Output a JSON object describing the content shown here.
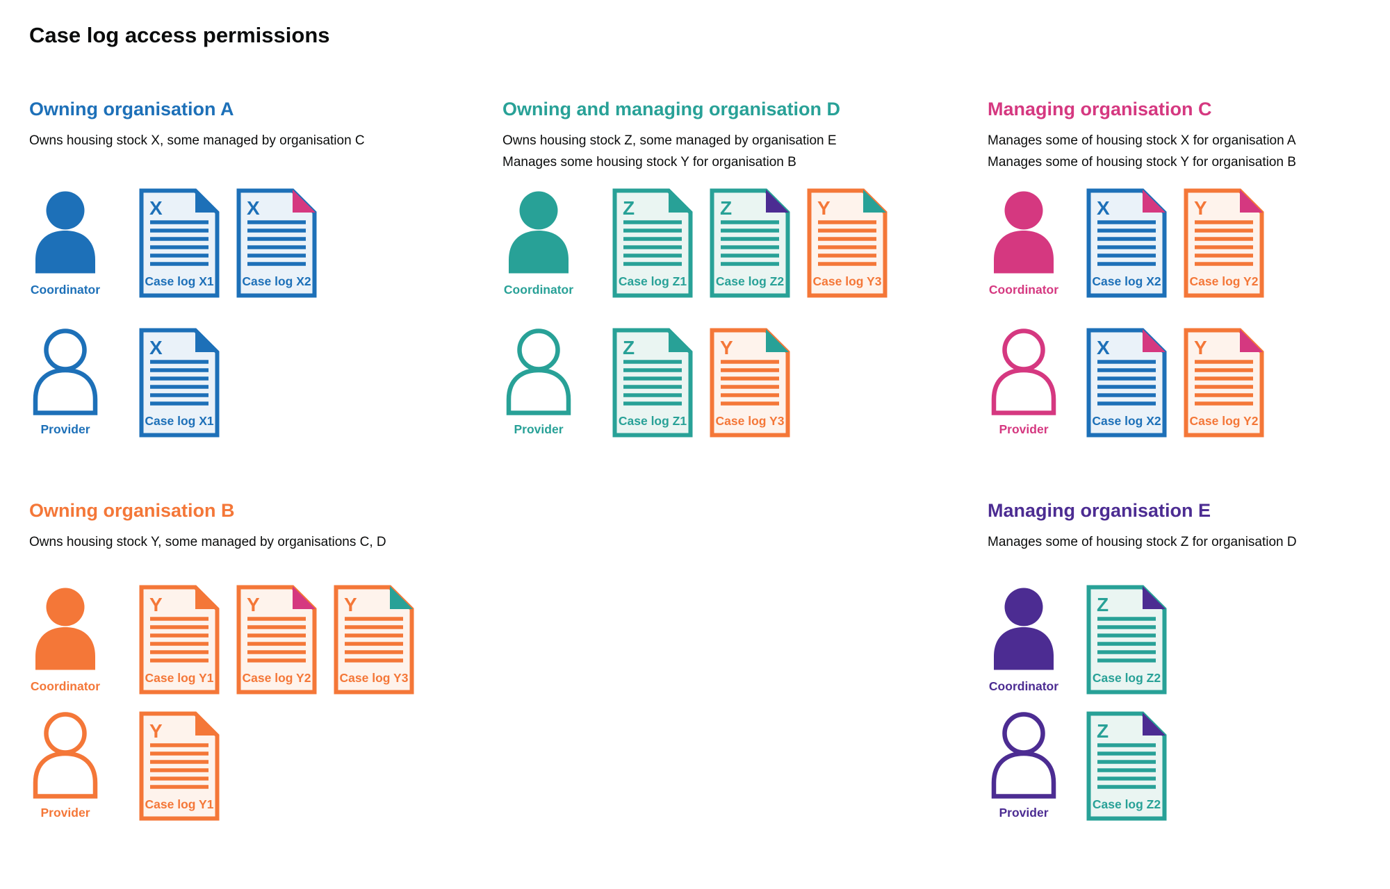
{
  "page_title": "Case log access permissions",
  "colors": {
    "blue": "#1d70b8",
    "teal": "#28a197",
    "pink": "#d53880",
    "orange": "#f47738",
    "purple": "#4c2c92",
    "text": "#0b0c0c",
    "background": "#ffffff",
    "tint_blue": "#eaf2f9",
    "tint_teal": "#eaf5f2",
    "tint_orange": "#fef3ec"
  },
  "sections": [
    {
      "slot": "a",
      "title": "Owning organisation A",
      "color": "blue",
      "description_lines": [
        "Owns housing stock X, some managed by organisation C"
      ],
      "rows": [
        {
          "role": "Coordinator",
          "person_style": "filled",
          "docs": [
            {
              "letter": "X",
              "label": "Case log X1",
              "doc_color": "blue",
              "fold_color": "blue"
            },
            {
              "letter": "X",
              "label": "Case log X2",
              "doc_color": "blue",
              "fold_color": "pink"
            }
          ]
        },
        {
          "role": "Provider",
          "person_style": "outline",
          "docs": [
            {
              "letter": "X",
              "label": "Case log X1",
              "doc_color": "blue",
              "fold_color": "blue"
            }
          ]
        }
      ]
    },
    {
      "slot": "d",
      "title": "Owning and managing organisation D",
      "color": "teal",
      "description_lines": [
        "Owns housing stock Z, some managed by organisation E",
        "Manages some housing stock Y for organisation B"
      ],
      "rows": [
        {
          "role": "Coordinator",
          "person_style": "filled",
          "docs": [
            {
              "letter": "Z",
              "label": "Case log Z1",
              "doc_color": "teal",
              "fold_color": "teal"
            },
            {
              "letter": "Z",
              "label": "Case log Z2",
              "doc_color": "teal",
              "fold_color": "purple"
            },
            {
              "letter": "Y",
              "label": "Case log Y3",
              "doc_color": "orange",
              "fold_color": "teal"
            }
          ]
        },
        {
          "role": "Provider",
          "person_style": "outline",
          "docs": [
            {
              "letter": "Z",
              "label": "Case log Z1",
              "doc_color": "teal",
              "fold_color": "teal"
            },
            {
              "letter": "Y",
              "label": "Case log Y3",
              "doc_color": "orange",
              "fold_color": "teal"
            }
          ]
        }
      ]
    },
    {
      "slot": "c",
      "title": "Managing organisation C",
      "color": "pink",
      "description_lines": [
        "Manages some of housing stock X for organisation A",
        "Manages some of housing stock Y for organisation B"
      ],
      "rows": [
        {
          "role": "Coordinator",
          "person_style": "filled",
          "docs": [
            {
              "letter": "X",
              "label": "Case log X2",
              "doc_color": "blue",
              "fold_color": "pink"
            },
            {
              "letter": "Y",
              "label": "Case log Y2",
              "doc_color": "orange",
              "fold_color": "pink"
            }
          ]
        },
        {
          "role": "Provider",
          "person_style": "outline",
          "docs": [
            {
              "letter": "X",
              "label": "Case log X2",
              "doc_color": "blue",
              "fold_color": "pink"
            },
            {
              "letter": "Y",
              "label": "Case log Y2",
              "doc_color": "orange",
              "fold_color": "pink"
            }
          ]
        }
      ]
    },
    {
      "slot": "b",
      "title": "Owning organisation B",
      "color": "orange",
      "description_lines": [
        "Owns housing stock Y, some managed by organisations C, D"
      ],
      "rows": [
        {
          "role": "Coordinator",
          "person_style": "filled",
          "docs": [
            {
              "letter": "Y",
              "label": "Case log Y1",
              "doc_color": "orange",
              "fold_color": "orange"
            },
            {
              "letter": "Y",
              "label": "Case log Y2",
              "doc_color": "orange",
              "fold_color": "pink"
            },
            {
              "letter": "Y",
              "label": "Case log Y3",
              "doc_color": "orange",
              "fold_color": "teal"
            }
          ]
        },
        {
          "role": "Provider",
          "person_style": "outline",
          "docs": [
            {
              "letter": "Y",
              "label": "Case log Y1",
              "doc_color": "orange",
              "fold_color": "orange"
            }
          ]
        }
      ]
    },
    {
      "slot": "e",
      "title": "Managing organisation E",
      "color": "purple",
      "description_lines": [
        "Manages some of housing stock Z for organisation D"
      ],
      "rows": [
        {
          "role": "Coordinator",
          "person_style": "filled",
          "docs": [
            {
              "letter": "Z",
              "label": "Case log Z2",
              "doc_color": "teal",
              "fold_color": "purple"
            }
          ]
        },
        {
          "role": "Provider",
          "person_style": "outline",
          "docs": [
            {
              "letter": "Z",
              "label": "Case log Z2",
              "doc_color": "teal",
              "fold_color": "purple"
            }
          ]
        }
      ]
    }
  ]
}
